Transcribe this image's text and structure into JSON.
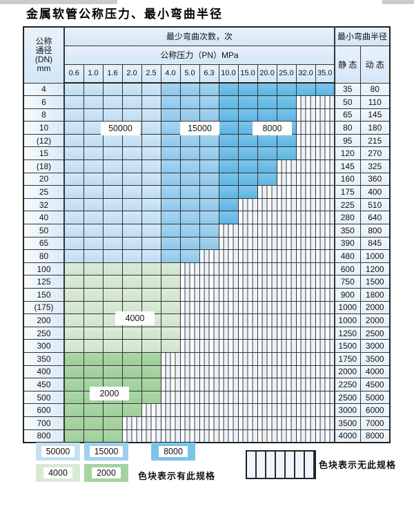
{
  "title": "金属软管公称压力、最小弯曲半径",
  "table": {
    "corner_header": [
      "公称",
      "通径",
      "(DN)",
      "mm"
    ],
    "bend_cycles_header": "最少弯曲次数，次",
    "pressure_header": "公称压力（PN）MPa",
    "radius_header": "最小弯曲半径",
    "static_header": "静 态",
    "dynamic_header": "动 态",
    "pressure_columns": [
      "0.6",
      "1.0",
      "1.6",
      "2.0",
      "2.5",
      "4.0",
      "5.0",
      "6.3",
      "10.0",
      "15.0",
      "20.0",
      "25.0",
      "32.0",
      "35.0"
    ],
    "rows": [
      {
        "dn": "4",
        "colored": 14,
        "static": "35",
        "dynamic": "80"
      },
      {
        "dn": "6",
        "colored": 12,
        "static": "50",
        "dynamic": "110"
      },
      {
        "dn": "8",
        "colored": 12,
        "static": "65",
        "dynamic": "145"
      },
      {
        "dn": "10",
        "colored": 12,
        "static": "80",
        "dynamic": "180"
      },
      {
        "dn": "(12)",
        "colored": 12,
        "static": "95",
        "dynamic": "215"
      },
      {
        "dn": "15",
        "colored": 12,
        "static": "120",
        "dynamic": "270"
      },
      {
        "dn": "(18)",
        "colored": 11,
        "static": "145",
        "dynamic": "325"
      },
      {
        "dn": "20",
        "colored": 11,
        "static": "160",
        "dynamic": "360"
      },
      {
        "dn": "25",
        "colored": 10,
        "static": "175",
        "dynamic": "400"
      },
      {
        "dn": "32",
        "colored": 9,
        "static": "225",
        "dynamic": "510"
      },
      {
        "dn": "40",
        "colored": 9,
        "static": "280",
        "dynamic": "640"
      },
      {
        "dn": "50",
        "colored": 8,
        "static": "350",
        "dynamic": "800"
      },
      {
        "dn": "65",
        "colored": 8,
        "static": "390",
        "dynamic": "845"
      },
      {
        "dn": "80",
        "colored": 7,
        "static": "480",
        "dynamic": "1000"
      },
      {
        "dn": "100",
        "colored": 6,
        "static": "600",
        "dynamic": "1200"
      },
      {
        "dn": "125",
        "colored": 6,
        "static": "750",
        "dynamic": "1500"
      },
      {
        "dn": "150",
        "colored": 6,
        "static": "900",
        "dynamic": "1800"
      },
      {
        "dn": "(175)",
        "colored": 6,
        "static": "1000",
        "dynamic": "2000"
      },
      {
        "dn": "200",
        "colored": 6,
        "static": "1000",
        "dynamic": "2000"
      },
      {
        "dn": "250",
        "colored": 6,
        "static": "1250",
        "dynamic": "2500"
      },
      {
        "dn": "300",
        "colored": 6,
        "static": "1500",
        "dynamic": "3000"
      },
      {
        "dn": "350",
        "colored": 5,
        "static": "1750",
        "dynamic": "3500"
      },
      {
        "dn": "400",
        "colored": 5,
        "static": "2000",
        "dynamic": "4000"
      },
      {
        "dn": "450",
        "colored": 5,
        "static": "2250",
        "dynamic": "4500"
      },
      {
        "dn": "500",
        "colored": 5,
        "static": "2500",
        "dynamic": "5000"
      },
      {
        "dn": "600",
        "colored": 4,
        "static": "3000",
        "dynamic": "6000"
      },
      {
        "dn": "700",
        "colored": 3,
        "static": "3500",
        "dynamic": "7000"
      },
      {
        "dn": "800",
        "colored": 3,
        "static": "4000",
        "dynamic": "8000"
      }
    ],
    "cycle_bands": [
      {
        "cycles": "50000",
        "columns": [
          "0.6",
          "1.0",
          "1.6",
          "2.0",
          "2.5"
        ],
        "applies_to": "DN 4-80",
        "color": "#c3e0f4"
      },
      {
        "cycles": "15000",
        "columns": [
          "4.0",
          "5.0",
          "6.3"
        ],
        "applies_to": "DN 4-80",
        "color": "#9fd0ee"
      },
      {
        "cycles": "8000",
        "columns": [
          "10.0",
          "15.0",
          "20.0",
          "25.0",
          "32.0",
          "35.0"
        ],
        "applies_to": "DN 4-80",
        "color": "#7cc3e9"
      },
      {
        "cycles": "4000",
        "applies_to": "DN 100-300",
        "color": "#d9e9d6"
      },
      {
        "cycles": "2000",
        "applies_to": "DN 350-800",
        "color": "#a5d2a1"
      }
    ]
  },
  "overlay_labels": [
    {
      "text": "50000"
    },
    {
      "text": "15000"
    },
    {
      "text": "8000"
    },
    {
      "text": "4000"
    },
    {
      "text": "2000"
    }
  ],
  "legend": {
    "items": [
      {
        "label": "50000"
      },
      {
        "label": "15000"
      },
      {
        "label": "8000"
      },
      {
        "label": "4000"
      },
      {
        "label": "2000"
      }
    ],
    "has_spec_text": "色块表示有此规格",
    "no_spec_text": "色块表示无此规格"
  },
  "colors": {
    "band_50000": "#c3e0f4",
    "band_15000": "#9fd0ee",
    "band_8000": "#7cc3e9",
    "band_4000": "#d9e9d6",
    "band_2000": "#a5d2a1",
    "header_bg": "#d9e9f7",
    "grid_line": "#333333"
  }
}
